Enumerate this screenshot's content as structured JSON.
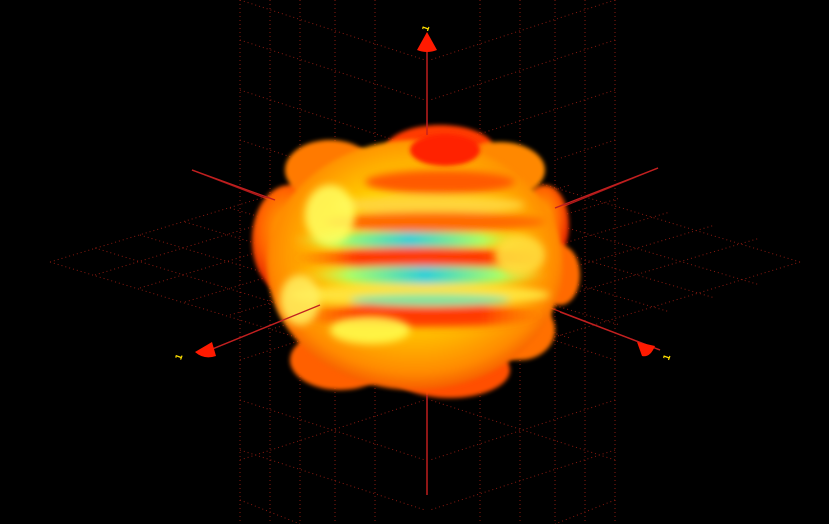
{
  "scene": {
    "background_color": "#000000",
    "axis_color": "#b01818",
    "grid_color": "#8a1a10",
    "arrowhead_color": "#ff1a00",
    "label_color": "#ffe000",
    "axes": [
      {
        "name": "z-axis",
        "label": "1"
      },
      {
        "name": "x-axis",
        "label": "1"
      },
      {
        "name": "y-axis",
        "label": "1"
      }
    ],
    "surface_colormap": [
      "#e81e00",
      "#ff6a00",
      "#ffb400",
      "#ffff30",
      "#9cff6a",
      "#2fd8d8"
    ],
    "grid_visible": true
  }
}
